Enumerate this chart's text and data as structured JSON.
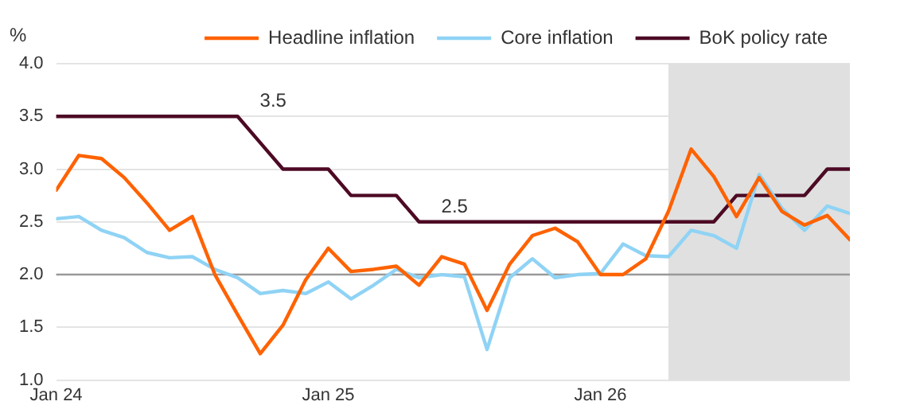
{
  "chart_data": {
    "type": "line",
    "ylabel": "%",
    "x": [
      "2024-01",
      "2024-02",
      "2024-03",
      "2024-04",
      "2024-05",
      "2024-06",
      "2024-07",
      "2024-08",
      "2024-09",
      "2024-10",
      "2024-11",
      "2024-12",
      "2025-01",
      "2025-02",
      "2025-03",
      "2025-04",
      "2025-05",
      "2025-06",
      "2025-07",
      "2025-08",
      "2025-09",
      "2025-10",
      "2025-11",
      "2025-12",
      "2026-01",
      "2026-02",
      "2026-03",
      "2026-04",
      "2026-05",
      "2026-06",
      "2026-07",
      "2026-08",
      "2026-09",
      "2026-10",
      "2026-11",
      "2026-12"
    ],
    "series": [
      {
        "name": "Headline inflation",
        "color": "#ff6200",
        "values": [
          2.8,
          3.13,
          3.1,
          2.92,
          2.68,
          2.42,
          2.55,
          2.0,
          1.62,
          1.25,
          1.52,
          1.95,
          2.25,
          2.03,
          2.05,
          2.08,
          1.9,
          2.17,
          2.1,
          1.66,
          2.1,
          2.37,
          2.44,
          2.31,
          2.0,
          2.0,
          2.15,
          2.6,
          3.19,
          2.93,
          2.55,
          2.92,
          2.6,
          2.47,
          2.56,
          2.33
        ]
      },
      {
        "name": "Core inflation",
        "color": "#8fd3f5",
        "values": [
          2.53,
          2.55,
          2.42,
          2.35,
          2.21,
          2.16,
          2.17,
          2.05,
          1.97,
          1.82,
          1.85,
          1.82,
          1.93,
          1.77,
          1.9,
          2.05,
          1.97,
          2.0,
          1.98,
          1.29,
          1.97,
          2.15,
          1.97,
          2.0,
          2.01,
          2.29,
          2.18,
          2.17,
          2.42,
          2.37,
          2.25,
          2.95,
          2.63,
          2.42,
          2.65,
          2.58
        ]
      },
      {
        "name": "BoK policy rate",
        "color": "#4d0a24",
        "values": [
          3.5,
          3.5,
          3.5,
          3.5,
          3.5,
          3.5,
          3.5,
          3.5,
          3.5,
          3.25,
          3.0,
          3.0,
          3.0,
          2.75,
          2.75,
          2.75,
          2.5,
          2.5,
          2.5,
          2.5,
          2.5,
          2.5,
          2.5,
          2.5,
          2.5,
          2.5,
          2.5,
          2.5,
          2.5,
          2.5,
          2.75,
          2.75,
          2.75,
          2.75,
          3.0,
          3.0
        ]
      }
    ],
    "xlim": [
      "2024-01",
      "2026-12"
    ],
    "xticks": [
      {
        "value": "2024-01",
        "label": "Jan 24"
      },
      {
        "value": "2025-01",
        "label": "Jan 25"
      },
      {
        "value": "2026-01",
        "label": "Jan 26"
      }
    ],
    "ylim": [
      1.0,
      4.0
    ],
    "yticks": [
      {
        "value": 1.0,
        "label": "1.0"
      },
      {
        "value": 1.5,
        "label": "1.5"
      },
      {
        "value": 2.0,
        "label": "2.0"
      },
      {
        "value": 2.5,
        "label": "2.5"
      },
      {
        "value": 3.0,
        "label": "3.0"
      },
      {
        "value": 3.5,
        "label": "3.5"
      },
      {
        "value": 4.0,
        "label": "4.0"
      }
    ],
    "grid": "y",
    "legend": "top",
    "marker": "none",
    "ref_lines": [
      {
        "axis": "y",
        "value": 2.0,
        "color": "#999999"
      }
    ],
    "bands": [
      {
        "axis": "x",
        "from": "2026-04",
        "to": "2026-12",
        "color": "#e0e0e0"
      }
    ],
    "annotations": [
      {
        "text": "3.5",
        "x": "2024-09",
        "y": 3.5
      },
      {
        "text": "2.5",
        "x": "2025-05",
        "y": 2.5
      }
    ]
  }
}
